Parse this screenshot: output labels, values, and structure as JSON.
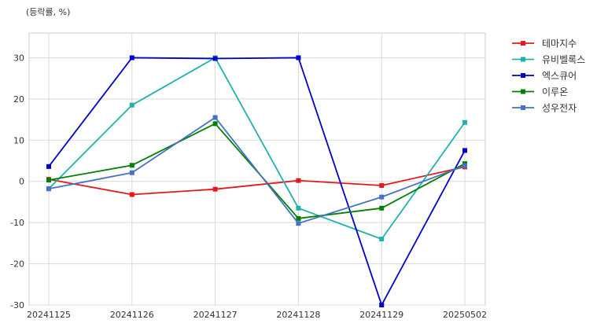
{
  "chart_data": {
    "type": "line",
    "title": "",
    "unit_label": "(등락률, %)",
    "xlabel": "",
    "ylabel": "",
    "x": [
      "20241125",
      "20241126",
      "20241127",
      "20241128",
      "20241129",
      "20250502"
    ],
    "ylim": [
      -30,
      36
    ],
    "yticks": [
      30,
      20,
      10,
      0,
      -10,
      -20,
      -30
    ],
    "grid": true,
    "legend_position": "right",
    "series": [
      {
        "name": "테마지수",
        "color": "#e31a1c",
        "values": [
          0.5,
          -3.2,
          -1.9,
          0.2,
          -1.0,
          3.5
        ]
      },
      {
        "name": "유비벨록스",
        "color": "#20b2aa",
        "values": [
          -1.8,
          18.5,
          30.0,
          -6.5,
          -14.0,
          14.3
        ]
      },
      {
        "name": "엑스큐어",
        "color": "#0000cd",
        "values": [
          3.6,
          30.0,
          29.8,
          30.0,
          -30.0,
          7.5
        ]
      },
      {
        "name": "이루온",
        "color": "#008000",
        "values": [
          0.3,
          3.9,
          14.0,
          -9.0,
          -6.5,
          4.3
        ]
      },
      {
        "name": "성우전자",
        "color": "#4472c4",
        "values": [
          -1.8,
          2.1,
          15.5,
          -10.2,
          -3.8,
          3.8
        ]
      }
    ]
  }
}
